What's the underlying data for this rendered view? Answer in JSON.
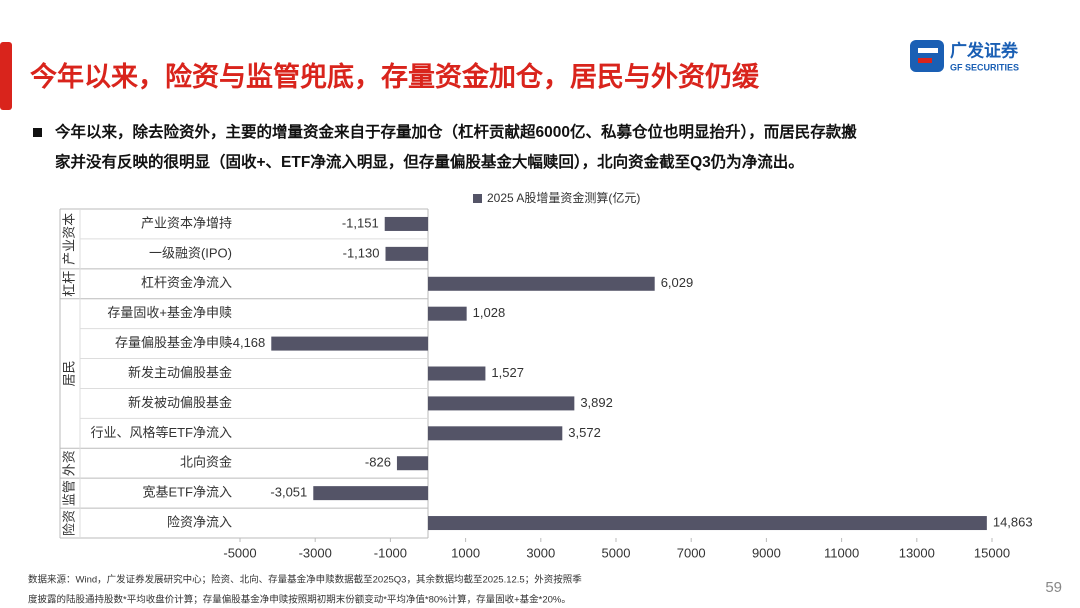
{
  "header": {
    "title": "今年以来，险资与监管兜底，存量资金加仓，居民与外资仍缓",
    "logo_name": "广发证券",
    "logo_subtitle": "GF SECURITIES"
  },
  "bullet": {
    "lines": [
      "今年以来，除去险资外，主要的增量资金来自于存量加仓（杠杆贡献超6000亿、私募仓位也明显抬升），而居民存款搬",
      "家并没有反映的很明显（固收+、ETF净流入明显，但存量偏股基金大幅赎回），北向资金截至Q3仍为净流出。"
    ]
  },
  "chart_data": {
    "type": "bar",
    "orientation": "horizontal",
    "categories": [
      "产业资本净增持",
      "一级融资(IPO)",
      "杠杆资金净流入",
      "存量固收+基金净申赎",
      "存量偏股基金净申赎",
      "新发主动偏股基金",
      "新发被动偏股基金",
      "行业、风格等ETF净流入",
      "北向资金",
      "宽基ETF净流入",
      "险资净流入"
    ],
    "groups": [
      "产业资本",
      "杠杆",
      "居民",
      "外资",
      "监管",
      "险资"
    ],
    "series": [
      {
        "name": "2025 A股增量资金测算(亿元)",
        "color": "#545467",
        "values": [
          -1151,
          -1130,
          6029,
          1028,
          -4168,
          1527,
          3892,
          3572,
          -826,
          -3051,
          14863
        ],
        "value_labels": [
          "-1,151",
          "-1,130",
          "6,029",
          "1,028",
          "-4,168",
          "1,527",
          "3,892",
          "3,572",
          "-826",
          "-3,051",
          "14,863"
        ]
      }
    ],
    "xlim": [
      -5000,
      15000
    ],
    "xticks": [
      -5000,
      -3000,
      -1000,
      1000,
      3000,
      5000,
      7000,
      9000,
      11000,
      13000,
      15000
    ]
  },
  "footer": {
    "lines": [
      "数据来源：Wind，广发证券发展研究中心；险资、北向、存量基金净申赎数据截至2025Q3，其余数据均截至2025.12.5；外资按照季",
      "度披露的陆股通持股数*平均收盘价计算；存量偏股基金净申赎按照期初期末份额变动*平均净值*80%计算，存量固收+基金*20%。"
    ],
    "page": "59"
  }
}
